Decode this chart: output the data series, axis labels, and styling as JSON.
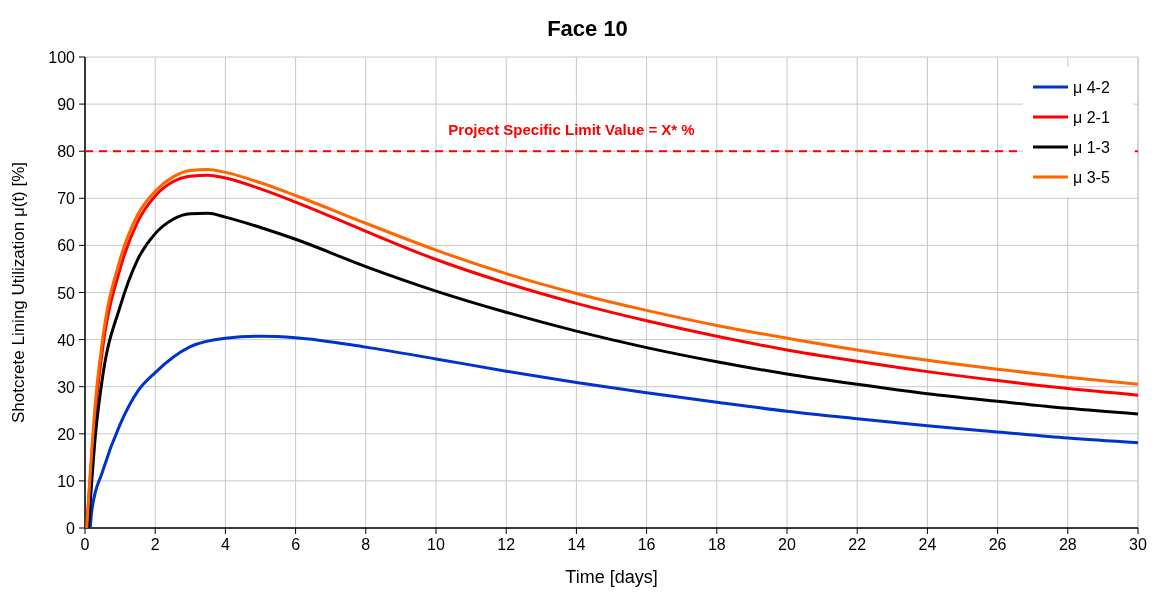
{
  "chart_data": {
    "type": "line",
    "title": "Face 10",
    "xlabel": "Time [days]",
    "ylabel": "Shotcrete Lining Utilization μ(t) [%]",
    "xlim": [
      0,
      30
    ],
    "xticks": [
      0,
      2,
      4,
      6,
      8,
      10,
      12,
      14,
      16,
      18,
      20,
      22,
      24,
      26,
      28,
      30
    ],
    "ylim": [
      0,
      100
    ],
    "yticks": [
      0,
      10,
      20,
      30,
      40,
      50,
      60,
      70,
      80,
      90,
      100
    ],
    "grid": true,
    "legend": "top right",
    "marker": "none",
    "line_style": "solid",
    "ref_lines": [
      {
        "axis": "y",
        "value": 80,
        "label": "Project Specific Limit Value = X* %",
        "color": "#ff0000",
        "line_style": "dashed"
      }
    ],
    "series": [
      {
        "name": "μ 4-2",
        "color": "#0033cc",
        "x": [
          0.15,
          0.2,
          0.5,
          1,
          1.5,
          2,
          3,
          4,
          5,
          6,
          8,
          10,
          12,
          14,
          16,
          18,
          20,
          22,
          24,
          26,
          28,
          30
        ],
        "values": [
          0,
          4,
          12,
          22,
          29,
          33,
          38.5,
          40.3,
          40.7,
          40.4,
          38.4,
          35.9,
          33.3,
          30.9,
          28.7,
          26.7,
          24.8,
          23.2,
          21.7,
          20.4,
          19.1,
          18.1
        ]
      },
      {
        "name": "μ 2-1",
        "color": "#ff0000",
        "x": [
          0.05,
          0.3,
          0.5,
          1,
          1.5,
          2,
          2.5,
          3,
          3.5,
          4,
          5,
          6,
          8,
          10,
          12,
          14,
          16,
          18,
          20,
          22,
          24,
          26,
          28,
          30
        ],
        "values": [
          0,
          25,
          38,
          55,
          65,
          70.5,
          73.5,
          74.7,
          74.9,
          74.3,
          72,
          69.2,
          63,
          57,
          52,
          47.7,
          44,
          40.7,
          37.8,
          35.4,
          33.2,
          31.3,
          29.6,
          28.2
        ]
      },
      {
        "name": "μ 1-3",
        "color": "#000000",
        "x": [
          0.1,
          0.3,
          0.5,
          1,
          1.5,
          2,
          2.5,
          3,
          3.5,
          4,
          5,
          6,
          8,
          10,
          12,
          14,
          16,
          18,
          20,
          22,
          24,
          26,
          28,
          30
        ],
        "values": [
          0,
          20,
          32,
          47,
          57,
          62.5,
          65.5,
          66.7,
          66.8,
          66,
          63.8,
          61.3,
          55.5,
          50.3,
          45.8,
          41.8,
          38.3,
          35.3,
          32.7,
          30.5,
          28.5,
          26.9,
          25.4,
          24.2
        ]
      },
      {
        "name": "μ 3-5",
        "color": "#ff6600",
        "x": [
          0.05,
          0.3,
          0.5,
          1,
          1.5,
          2,
          2.5,
          3,
          3.5,
          4,
          5,
          6,
          8,
          10,
          12,
          14,
          16,
          18,
          20,
          22,
          24,
          26,
          28,
          30
        ],
        "values": [
          0,
          27,
          40,
          57,
          66.5,
          71.5,
          74.5,
          75.9,
          76.1,
          75.5,
          73.3,
          70.6,
          64.7,
          59,
          54,
          49.8,
          46.2,
          43,
          40.3,
          37.8,
          35.6,
          33.7,
          32,
          30.5
        ]
      }
    ]
  }
}
